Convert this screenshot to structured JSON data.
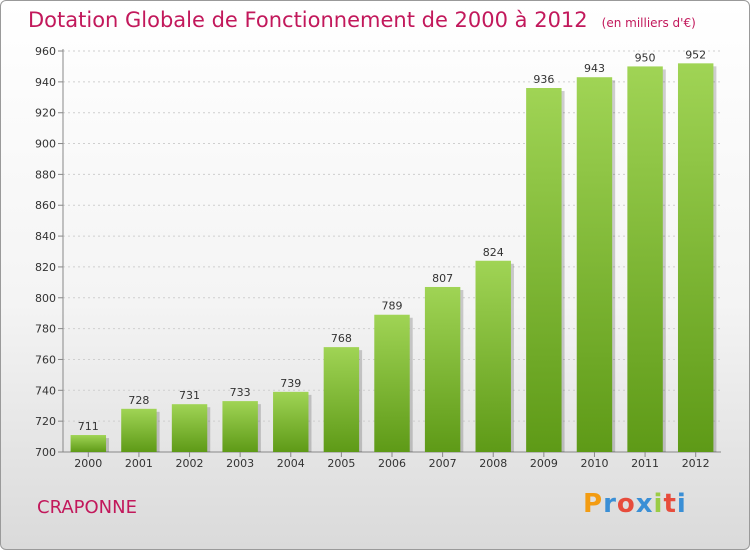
{
  "title": "Dotation Globale de Fonctionnement de 2000 à 2012",
  "unit": "(en milliers d'€)",
  "commune": "CRAPONNE",
  "logo": {
    "letters": [
      "P",
      "r",
      "o",
      "x",
      "i",
      "t",
      "i"
    ],
    "colors": [
      "#f39c12",
      "#3a8fd6",
      "#e74c3c",
      "#3a8fd6",
      "#9bcc45",
      "#e74c3c",
      "#3a8fd6"
    ]
  },
  "chart_data": {
    "type": "bar",
    "title": "Dotation Globale de Fonctionnement de 2000 à 2012",
    "categories": [
      "2000",
      "2001",
      "2002",
      "2003",
      "2004",
      "2005",
      "2006",
      "2007",
      "2008",
      "2009",
      "2010",
      "2011",
      "2012"
    ],
    "values": [
      711,
      728,
      731,
      733,
      739,
      768,
      789,
      807,
      824,
      936,
      943,
      950,
      952
    ],
    "ylim": [
      700,
      960
    ],
    "yticks": [
      700,
      720,
      740,
      760,
      780,
      800,
      820,
      840,
      860,
      880,
      900,
      920,
      940,
      960
    ],
    "grid": true,
    "bar_color_top": "#a0d455",
    "bar_color_bottom": "#5e9a17"
  }
}
